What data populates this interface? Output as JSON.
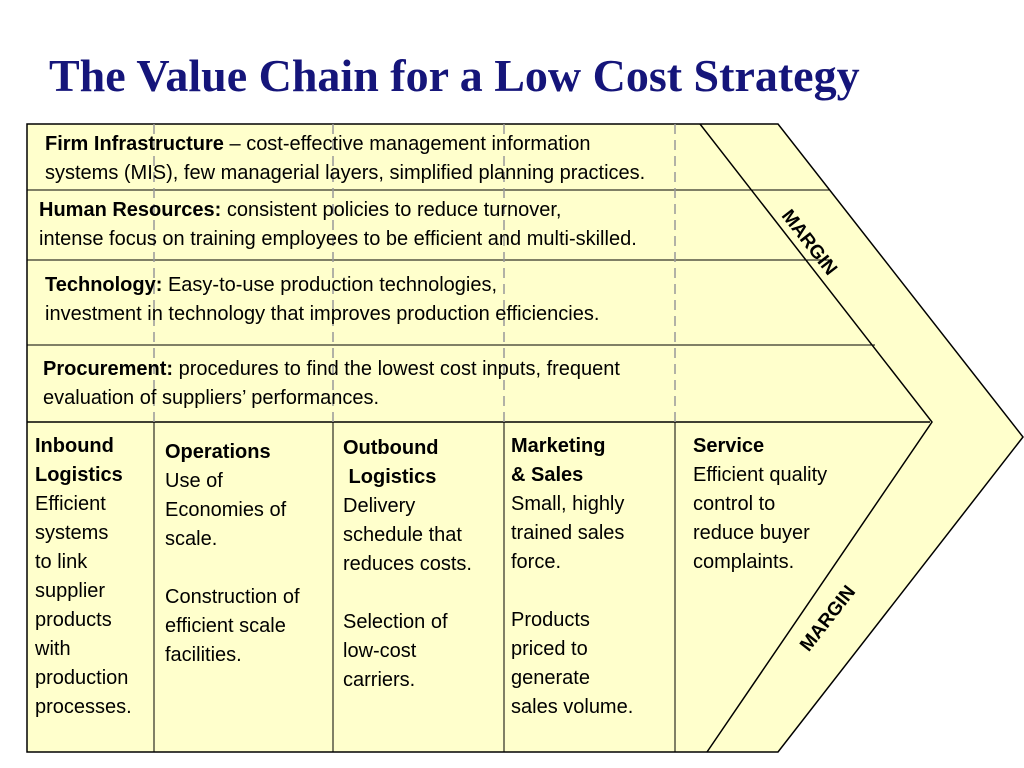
{
  "title": "The Value Chain for a Low Cost Strategy",
  "colors": {
    "title": "#15157a",
    "fill": "#ffffcc",
    "stroke": "#000000",
    "divider": "#999999"
  },
  "support": [
    {
      "heading": "Firm Infrastructure",
      "sep": " – ",
      "line1": "cost-effective management information",
      "line2": "systems (MIS), few managerial layers, simplified planning practices."
    },
    {
      "heading": "Human Resources:",
      "sep": "  ",
      "line1": "consistent policies to reduce turnover,",
      "line2": "intense focus on training employees to be efficient and multi-skilled."
    },
    {
      "heading": "Technology:",
      "sep": " ",
      "line1": "Easy-to-use production technologies,",
      "line2": "investment in technology that improves production efficiencies."
    },
    {
      "heading": "Procurement:",
      "sep": "  ",
      "line1": "procedures to find the lowest cost inputs, frequent",
      "line2": "evaluation of suppliers’ performances."
    }
  ],
  "primary": [
    {
      "heading": [
        "Inbound",
        "Logistics"
      ],
      "body": [
        "Efficient",
        "systems",
        "to link",
        "supplier",
        "products",
        "with",
        "production",
        "processes."
      ]
    },
    {
      "heading": [
        "Operations"
      ],
      "body": [
        "Use of",
        "Economies of",
        "scale.",
        "",
        "Construction of",
        "efficient scale",
        "facilities."
      ]
    },
    {
      "heading": [
        "Outbound",
        " Logistics"
      ],
      "body": [
        "Delivery",
        "schedule that",
        "reduces costs.",
        "",
        "Selection of",
        "low-cost",
        "carriers."
      ]
    },
    {
      "heading": [
        "Marketing",
        "& Sales"
      ],
      "body": [
        "Small, highly",
        "trained sales",
        "force.",
        "",
        "Products",
        "priced to",
        "generate",
        "sales volume."
      ]
    },
    {
      "heading": [
        "Service"
      ],
      "body": [
        "Efficient quality",
        "control to",
        "reduce buyer",
        "complaints."
      ]
    }
  ],
  "margin": {
    "top": "MARGIN",
    "bottom": "MARGIN"
  }
}
